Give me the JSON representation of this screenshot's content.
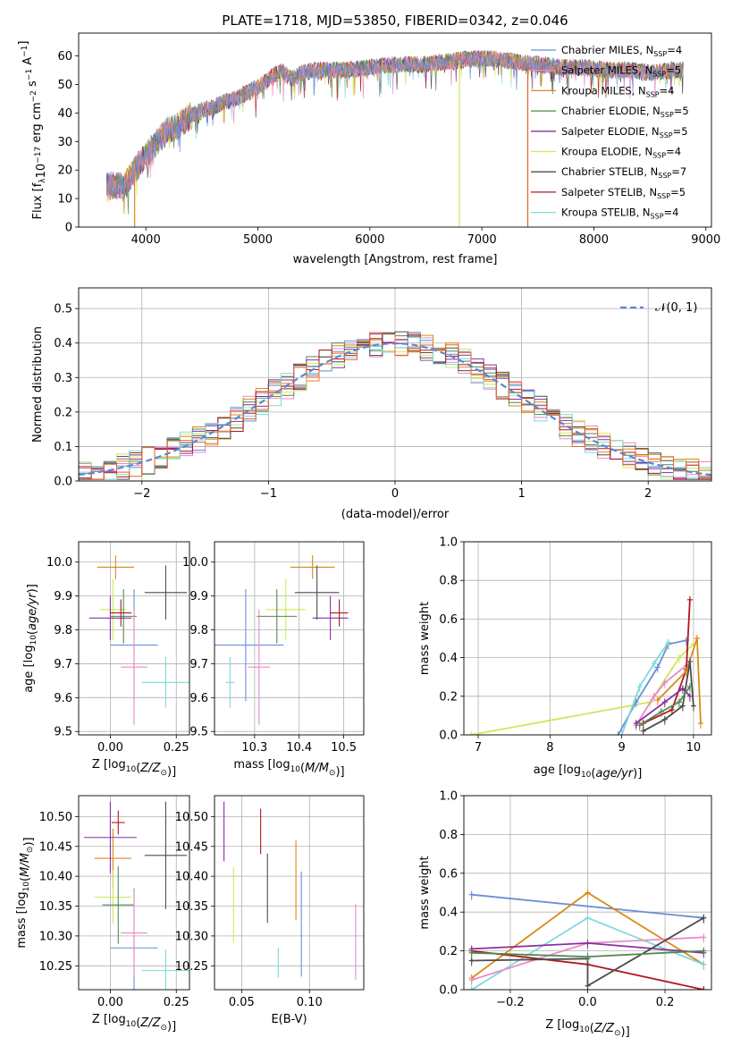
{
  "chart_data": [
    {
      "id": "spectrum",
      "type": "line",
      "title": "PLATE=1718, MJD=53850, FIBERID=0342, z=0.046",
      "xlabel": "wavelength [Angstrom, rest frame]",
      "ylabel": "Flux [f$_\\lambda$10$^{-17}$ erg cm$^{-2}$ s$^{-1}$ A$^{-1}$]",
      "ylabel_parts": {
        "a": "Flux [f",
        "b": "λ",
        "c": "10",
        "d": "−17",
        "e": " erg cm",
        "f": "−2",
        "g": " s",
        "h": "−1",
        "i": " A",
        "j": "−1",
        "k": "]"
      },
      "xlim": [
        3400,
        9050
      ],
      "ylim": [
        0,
        68
      ],
      "xticks": [
        "4000",
        "5000",
        "6000",
        "7000",
        "8000",
        "9000"
      ],
      "yticks": [
        "0",
        "10",
        "20",
        "30",
        "40",
        "50",
        "60"
      ],
      "grid": false,
      "legend_position": "right",
      "legend": [
        {
          "name": "Chabrier MILES",
          "n": "4",
          "color": "#6a8fd6"
        },
        {
          "name": "Salpeter MILES",
          "n": "5",
          "color": "#e889c8"
        },
        {
          "name": "Kroupa MILES",
          "n": "4",
          "color": "#d98a1a"
        },
        {
          "name": "Chabrier ELODIE",
          "n": "5",
          "color": "#4f8a4f"
        },
        {
          "name": "Salpeter ELODIE",
          "n": "5",
          "color": "#8a2fa0"
        },
        {
          "name": "Kroupa ELODIE",
          "n": "4",
          "color": "#cfe85a"
        },
        {
          "name": "Chabrier STELIB",
          "n": "7",
          "color": "#4d4d4d"
        },
        {
          "name": "Salpeter STELIB",
          "n": "5",
          "color": "#b0181c"
        },
        {
          "name": "Kroupa STELIB",
          "n": "4",
          "color": "#7fd8dc"
        }
      ],
      "nssp_label": "N",
      "nssp_sub": "SSP",
      "continuum": [
        [
          3650,
          15
        ],
        [
          3800,
          14
        ],
        [
          3900,
          20
        ],
        [
          4000,
          25
        ],
        [
          4100,
          30
        ],
        [
          4200,
          34
        ],
        [
          4300,
          36
        ],
        [
          4400,
          39
        ],
        [
          4500,
          41
        ],
        [
          4600,
          42
        ],
        [
          4700,
          44
        ],
        [
          4800,
          45
        ],
        [
          4900,
          47
        ],
        [
          5000,
          49
        ],
        [
          5100,
          52
        ],
        [
          5200,
          55
        ],
        [
          5300,
          52
        ],
        [
          5400,
          54
        ],
        [
          5500,
          55
        ],
        [
          5600,
          55
        ],
        [
          5800,
          55
        ],
        [
          6000,
          56
        ],
        [
          6200,
          57
        ],
        [
          6500,
          57
        ],
        [
          6700,
          58
        ],
        [
          6900,
          59
        ],
        [
          7100,
          59
        ],
        [
          7300,
          58
        ],
        [
          7500,
          57
        ],
        [
          7700,
          56
        ],
        [
          7900,
          56
        ],
        [
          8100,
          55
        ],
        [
          8300,
          55
        ],
        [
          8500,
          54
        ],
        [
          8700,
          55
        ],
        [
          8800,
          55
        ]
      ],
      "spikes": [
        {
          "x": 3900,
          "color": "#d98a1a"
        },
        {
          "x": 6800,
          "color": "#cfe85a"
        },
        {
          "x": 7410,
          "color": "#e8622a"
        }
      ]
    },
    {
      "id": "residuals",
      "type": "step-histogram",
      "xlabel": "(data-model)/error",
      "ylabel": "Normed distribution",
      "xlim": [
        -2.5,
        2.5
      ],
      "ylim": [
        0,
        0.56
      ],
      "xticks": [
        "−2",
        "−1",
        "0",
        "1",
        "2"
      ],
      "yticks": [
        "0.0",
        "0.1",
        "0.2",
        "0.3",
        "0.4",
        "0.5"
      ],
      "grid": true,
      "legend": [
        {
          "name": "𝒩(0, 1)",
          "color": "#5b86d6",
          "style": "dashed"
        }
      ],
      "reference_curve": "normal(0,1)"
    },
    {
      "id": "age-vs-Z",
      "type": "errorbar",
      "xlabel": "Z [log$_{10}$(Z/Z$_\\odot$)]",
      "ylabel": "age  [log$_{10}$(age/yr)]",
      "xlim": [
        -0.12,
        0.3
      ],
      "ylim": [
        9.49,
        10.06
      ],
      "xticks": [
        "0.00",
        "0.25"
      ],
      "yticks": [
        "9.5",
        "9.6",
        "9.7",
        "9.8",
        "9.9",
        "10.0"
      ],
      "grid": true,
      "points": [
        {
          "color": "#d98a1a",
          "x": 0.02,
          "xerr": 0.07,
          "y": 9.985,
          "yerr": 0.035
        },
        {
          "color": "#cfe85a",
          "x": 0.01,
          "xerr": 0.05,
          "y": 9.86,
          "yerr": 0.09
        },
        {
          "color": "#4f8a4f",
          "x": 0.05,
          "xerr": 0.05,
          "y": 9.84,
          "yerr": 0.08
        },
        {
          "color": "#8a2fa0",
          "x": 0.0,
          "xerr": 0.08,
          "y": 9.835,
          "yerr": 0.065
        },
        {
          "color": "#b0181c",
          "x": 0.04,
          "xerr": 0.04,
          "y": 9.85,
          "yerr": 0.04
        },
        {
          "color": "#4d4d4d",
          "x": 0.21,
          "xerr": 0.08,
          "y": 9.91,
          "yerr": 0.08
        },
        {
          "color": "#6a8fd6",
          "x": 0.09,
          "xerr": 0.09,
          "y": 9.755,
          "yerr": 0.165
        },
        {
          "color": "#e889c8",
          "x": 0.09,
          "xerr": 0.05,
          "y": 9.69,
          "yerr": 0.17
        },
        {
          "color": "#7fd8dc",
          "x": 0.21,
          "xerr": 0.09,
          "y": 9.645,
          "yerr": 0.075
        }
      ]
    },
    {
      "id": "age-vs-mass",
      "type": "errorbar",
      "xlabel": "mass [log$_{10}$(M/M$_\\odot$)]",
      "xlim": [
        10.21,
        10.545
      ],
      "ylim": [
        9.49,
        10.06
      ],
      "xticks": [
        "10.3",
        "10.4",
        "10.5"
      ],
      "yticks": [
        "9.5",
        "9.6",
        "9.7",
        "9.8",
        "9.9",
        "10.0"
      ],
      "grid": true,
      "points": [
        {
          "color": "#d98a1a",
          "x": 10.43,
          "xerr": 0.05,
          "y": 9.985,
          "yerr": 0.035
        },
        {
          "color": "#cfe85a",
          "x": 10.37,
          "xerr": 0.045,
          "y": 9.86,
          "yerr": 0.09
        },
        {
          "color": "#4f8a4f",
          "x": 10.35,
          "xerr": 0.045,
          "y": 9.84,
          "yerr": 0.08
        },
        {
          "color": "#8a2fa0",
          "x": 10.47,
          "xerr": 0.04,
          "y": 9.835,
          "yerr": 0.065
        },
        {
          "color": "#b0181c",
          "x": 10.49,
          "xerr": 0.02,
          "y": 9.85,
          "yerr": 0.04
        },
        {
          "color": "#4d4d4d",
          "x": 10.44,
          "xerr": 0.05,
          "y": 9.91,
          "yerr": 0.08
        },
        {
          "color": "#6a8fd6",
          "x": 10.28,
          "xerr": 0.085,
          "y": 9.755,
          "yerr": 0.165
        },
        {
          "color": "#e889c8",
          "x": 10.31,
          "xerr": 0.025,
          "y": 9.69,
          "yerr": 0.17
        },
        {
          "color": "#7fd8dc",
          "x": 10.245,
          "xerr": 0.01,
          "y": 9.645,
          "yerr": 0.075
        }
      ]
    },
    {
      "id": "weight-vs-age",
      "type": "line",
      "xlabel": "age  [log$_{10}$(age/yr)]",
      "ylabel": "mass weight",
      "xlim": [
        6.8,
        10.25
      ],
      "ylim": [
        0,
        1
      ],
      "xticks": [
        "7",
        "8",
        "9",
        "10"
      ],
      "yticks": [
        "0.0",
        "0.2",
        "0.4",
        "0.6",
        "0.8",
        "1.0"
      ],
      "grid": true,
      "series": [
        {
          "color": "#cfe85a",
          "points": [
            [
              6.9,
              0
            ],
            [
              9.4,
              0.17
            ],
            [
              9.8,
              0.4
            ],
            [
              10.0,
              0.47
            ]
          ]
        },
        {
          "color": "#6a8fd6",
          "points": [
            [
              8.95,
              0
            ],
            [
              9.2,
              0.17
            ],
            [
              9.5,
              0.35
            ],
            [
              9.65,
              0.47
            ],
            [
              9.9,
              0.49
            ]
          ]
        },
        {
          "color": "#7fd8dc",
          "points": [
            [
              9.0,
              0
            ],
            [
              9.25,
              0.25
            ],
            [
              9.45,
              0.37
            ],
            [
              9.65,
              0.48
            ]
          ]
        },
        {
          "color": "#e889c8",
          "points": [
            [
              9.2,
              0.05
            ],
            [
              9.45,
              0.2
            ],
            [
              9.6,
              0.27
            ],
            [
              9.9,
              0.36
            ]
          ]
        },
        {
          "color": "#b0181c",
          "points": [
            [
              9.3,
              0.06
            ],
            [
              9.7,
              0.13
            ],
            [
              9.9,
              0.34
            ],
            [
              9.95,
              0.7
            ]
          ]
        },
        {
          "color": "#d98a1a",
          "points": [
            [
              9.5,
              0.18
            ],
            [
              9.9,
              0.33
            ],
            [
              10.05,
              0.5
            ],
            [
              10.1,
              0.06
            ]
          ]
        },
        {
          "color": "#8a2fa0",
          "points": [
            [
              9.2,
              0.06
            ],
            [
              9.6,
              0.17
            ],
            [
              9.85,
              0.24
            ],
            [
              9.95,
              0.2
            ]
          ]
        },
        {
          "color": "#4d4d4d",
          "points": [
            [
              9.3,
              0.02
            ],
            [
              9.6,
              0.08
            ],
            [
              9.85,
              0.15
            ],
            [
              9.95,
              0.38
            ],
            [
              10.0,
              0.15
            ]
          ]
        },
        {
          "color": "#4f8a4f",
          "points": [
            [
              9.25,
              0.05
            ],
            [
              9.55,
              0.12
            ],
            [
              9.8,
              0.17
            ],
            [
              9.95,
              0.25
            ]
          ]
        }
      ]
    },
    {
      "id": "mass-vs-Z",
      "type": "errorbar",
      "xlabel": "Z [log$_{10}$(Z/Z$_\\odot$)]",
      "ylabel": "mass [log$_{10}$(M/M$_\\odot$)]",
      "xlim": [
        -0.12,
        0.3
      ],
      "ylim": [
        10.21,
        10.535
      ],
      "xticks": [
        "0.00",
        "0.25"
      ],
      "yticks": [
        "10.25",
        "10.30",
        "10.35",
        "10.40",
        "10.45",
        "10.50"
      ],
      "grid": true,
      "points": [
        {
          "color": "#d98a1a",
          "y": 10.43,
          "yerr": 0.05,
          "x": 0.01,
          "xerr": 0.07
        },
        {
          "color": "#cfe85a",
          "y": 10.365,
          "yerr": 0.045,
          "x": 0.01,
          "xerr": 0.07
        },
        {
          "color": "#4f8a4f",
          "y": 10.352,
          "yerr": 0.065,
          "x": 0.03,
          "xerr": 0.06
        },
        {
          "color": "#8a2fa0",
          "y": 10.465,
          "yerr": 0.06,
          "x": 0.0,
          "xerr": 0.1
        },
        {
          "color": "#b0181c",
          "y": 10.49,
          "yerr": 0.02,
          "x": 0.03,
          "xerr": 0.025
        },
        {
          "color": "#4d4d4d",
          "y": 10.435,
          "yerr": 0.09,
          "x": 0.21,
          "xerr": 0.08
        },
        {
          "color": "#6a8fd6",
          "y": 10.28,
          "yerr": 0.1,
          "x": 0.09,
          "xerr": 0.09
        },
        {
          "color": "#e889c8",
          "y": 10.305,
          "yerr": 0.07,
          "x": 0.09,
          "xerr": 0.05
        },
        {
          "color": "#7fd8dc",
          "y": 10.242,
          "yerr": 0.035,
          "x": 0.21,
          "xerr": 0.09
        }
      ]
    },
    {
      "id": "mass-vs-ebv",
      "type": "errorbar",
      "xlabel": "E(B-V)",
      "xlim": [
        0.03,
        0.14
      ],
      "ylim": [
        10.21,
        10.535
      ],
      "xticks": [
        "0.05",
        "0.10"
      ],
      "yticks": [
        "10.25",
        "10.30",
        "10.35",
        "10.40",
        "10.45",
        "10.50"
      ],
      "grid": true,
      "points": [
        {
          "color": "#8a2fa0",
          "x": 0.037,
          "y": 10.475,
          "yerr": 0.05
        },
        {
          "color": "#cfe85a",
          "x": 0.044,
          "y": 10.352,
          "yerr": 0.063
        },
        {
          "color": "#b0181c",
          "x": 0.064,
          "y": 10.475,
          "yerr": 0.038
        },
        {
          "color": "#4d4d4d",
          "x": 0.069,
          "y": 10.38,
          "yerr": 0.058
        },
        {
          "color": "#7fd8dc",
          "x": 0.077,
          "y": 10.255,
          "yerr": 0.025
        },
        {
          "color": "#d98a1a",
          "x": 0.09,
          "y": 10.393,
          "yerr": 0.067
        },
        {
          "color": "#6a8fd6",
          "x": 0.094,
          "y": 10.32,
          "yerr": 0.088
        },
        {
          "color": "#e889c8",
          "x": 0.134,
          "y": 10.29,
          "yerr": 0.063
        }
      ]
    },
    {
      "id": "weight-vs-Z",
      "type": "line",
      "xlabel": "Z [log$_{10}$(Z/Z$_\\odot$)]",
      "ylabel": "mass weight",
      "xlim": [
        -0.32,
        0.32
      ],
      "ylim": [
        0,
        1
      ],
      "xticks": [
        "−0.2",
        "0.0",
        "0.2"
      ],
      "yticks": [
        "0.0",
        "0.2",
        "0.4",
        "0.6",
        "0.8",
        "1.0"
      ],
      "grid": true,
      "series": [
        {
          "color": "#6a8fd6",
          "points": [
            [
              -0.3,
              0.49
            ],
            [
              0.3,
              0.37
            ]
          ]
        },
        {
          "color": "#d98a1a",
          "points": [
            [
              -0.3,
              0.06
            ],
            [
              0.0,
              0.5
            ],
            [
              0.3,
              0.13
            ]
          ]
        },
        {
          "color": "#7fd8dc",
          "points": [
            [
              -0.3,
              0.0
            ],
            [
              0.0,
              0.37
            ],
            [
              0.3,
              0.13
            ]
          ]
        },
        {
          "color": "#e889c8",
          "points": [
            [
              -0.3,
              0.05
            ],
            [
              0.0,
              0.24
            ],
            [
              0.3,
              0.27
            ]
          ]
        },
        {
          "color": "#b0181c",
          "points": [
            [
              -0.3,
              0.2
            ],
            [
              0.0,
              0.13
            ],
            [
              0.3,
              0.0
            ]
          ]
        },
        {
          "color": "#8a2fa0",
          "points": [
            [
              -0.3,
              0.21
            ],
            [
              0.0,
              0.24
            ],
            [
              0.3,
              0.19
            ]
          ]
        },
        {
          "color": "#4d4d4d",
          "points": [
            [
              -0.3,
              0.15
            ],
            [
              0.0,
              0.16
            ],
            [
              0.0,
              0.02
            ],
            [
              0.3,
              0.37
            ]
          ]
        },
        {
          "color": "#4f8a4f",
          "points": [
            [
              -0.3,
              0.19
            ],
            [
              0.0,
              0.17
            ],
            [
              0.3,
              0.2
            ]
          ]
        }
      ]
    }
  ]
}
